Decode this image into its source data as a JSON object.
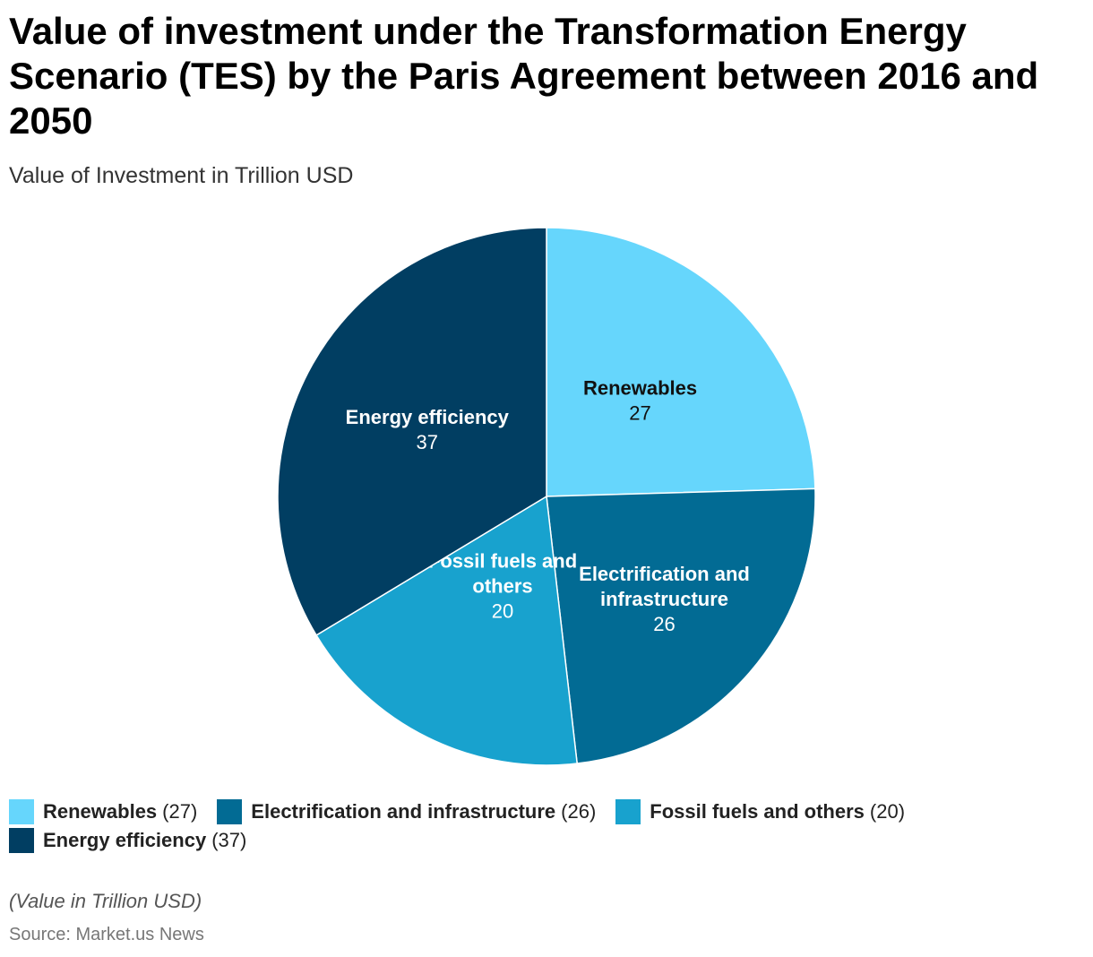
{
  "title": "Value of investment under the Transformation Energy Scenario (TES) by the Paris Agreement between 2016 and 2050",
  "subtitle": "Value of Investment in Trillion USD",
  "footnote": "(Value in Trillion USD)",
  "source": "Source: Market.us News",
  "chart_data": {
    "type": "pie",
    "title": "Value of investment under the Transformation Energy Scenario (TES) by the Paris Agreement between 2016 and 2050",
    "subtitle": "Value of Investment in Trillion USD",
    "unit": "Trillion USD",
    "start_angle_deg": 0,
    "direction": "clockwise",
    "legend_position": "bottom",
    "slices": [
      {
        "name": "Renewables",
        "label_lines": [
          "Renewables"
        ],
        "value": 27,
        "color": "#66d6fc",
        "text_color": "#111111"
      },
      {
        "name": "Electrification and infrastructure",
        "label_lines": [
          "Electrification and",
          "infrastructure"
        ],
        "value": 26,
        "color": "#026b94",
        "text_color": "#ffffff"
      },
      {
        "name": "Fossil fuels and others",
        "label_lines": [
          "Fossil fuels and",
          "others"
        ],
        "value": 20,
        "color": "#18a2ce",
        "text_color": "#ffffff"
      },
      {
        "name": "Energy efficiency",
        "label_lines": [
          "Energy efficiency"
        ],
        "value": 37,
        "color": "#013e62",
        "text_color": "#ffffff"
      }
    ]
  }
}
